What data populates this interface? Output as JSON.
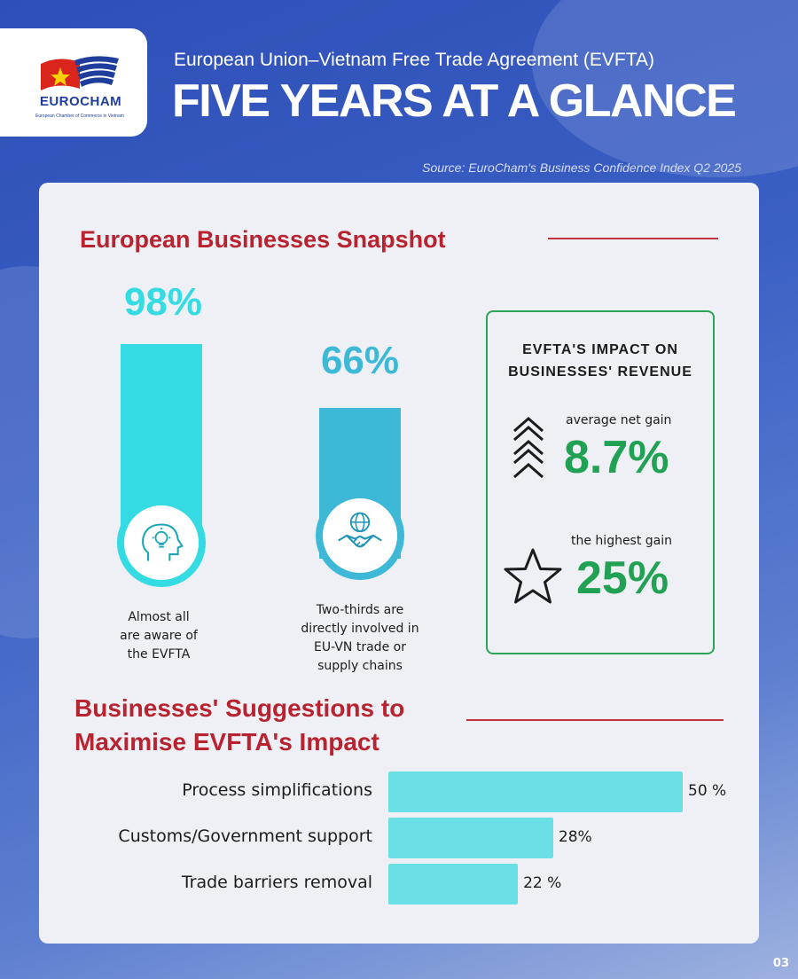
{
  "logo": {
    "name": "EUROCHAM",
    "subtitle": "European Chamber of Commerce in Vietnam",
    "colors": {
      "red": "#da251d",
      "yellow": "#ffd100",
      "blue": "#1f3e9c"
    }
  },
  "header": {
    "subtitle": "European Union–Vietnam Free Trade Agreement (EVFTA)",
    "title": "FIVE YEARS AT A GLANCE",
    "source": "Source: EuroCham's Business Confidence Index Q2 2025"
  },
  "snapshot": {
    "title": "European Businesses Snapshot",
    "stats": [
      {
        "percent": "98%",
        "value": 98,
        "caption_lines": [
          "Almost all",
          "are aware of",
          "the EVFTA"
        ],
        "icon": "lightbulb-head-icon",
        "color": "#35dbe2"
      },
      {
        "percent": "66%",
        "value": 66,
        "caption_lines": [
          "Two-thirds are",
          "directly involved in",
          "EU-VN trade or",
          "supply chains"
        ],
        "icon": "globe-handshake-icon",
        "color": "#3db8d6"
      }
    ],
    "impact": {
      "title_lines": [
        "EVFTA'S IMPACT ON",
        "BUSINESSES' REVENUE"
      ],
      "items": [
        {
          "label": "average net gain",
          "value": "8.7%",
          "icon": "chevron-up-stack-icon"
        },
        {
          "label": "the highest gain",
          "value": "25%",
          "icon": "star-icon"
        }
      ],
      "accent": "#21a153"
    }
  },
  "suggestions": {
    "title_lines": [
      "Businesses' Suggestions to",
      "Maximise EVFTA's Impact"
    ]
  },
  "chart_data": {
    "type": "bar",
    "orientation": "horizontal",
    "categories": [
      "Process simplifications",
      "Customs/Government support",
      "Trade barriers removal"
    ],
    "values": [
      50,
      28,
      22
    ],
    "value_labels": [
      "50 %",
      "28%",
      "22 %"
    ],
    "xlim": [
      0,
      50
    ],
    "grid": false,
    "bar_color": "#6ae0e6"
  },
  "page_number": "03"
}
